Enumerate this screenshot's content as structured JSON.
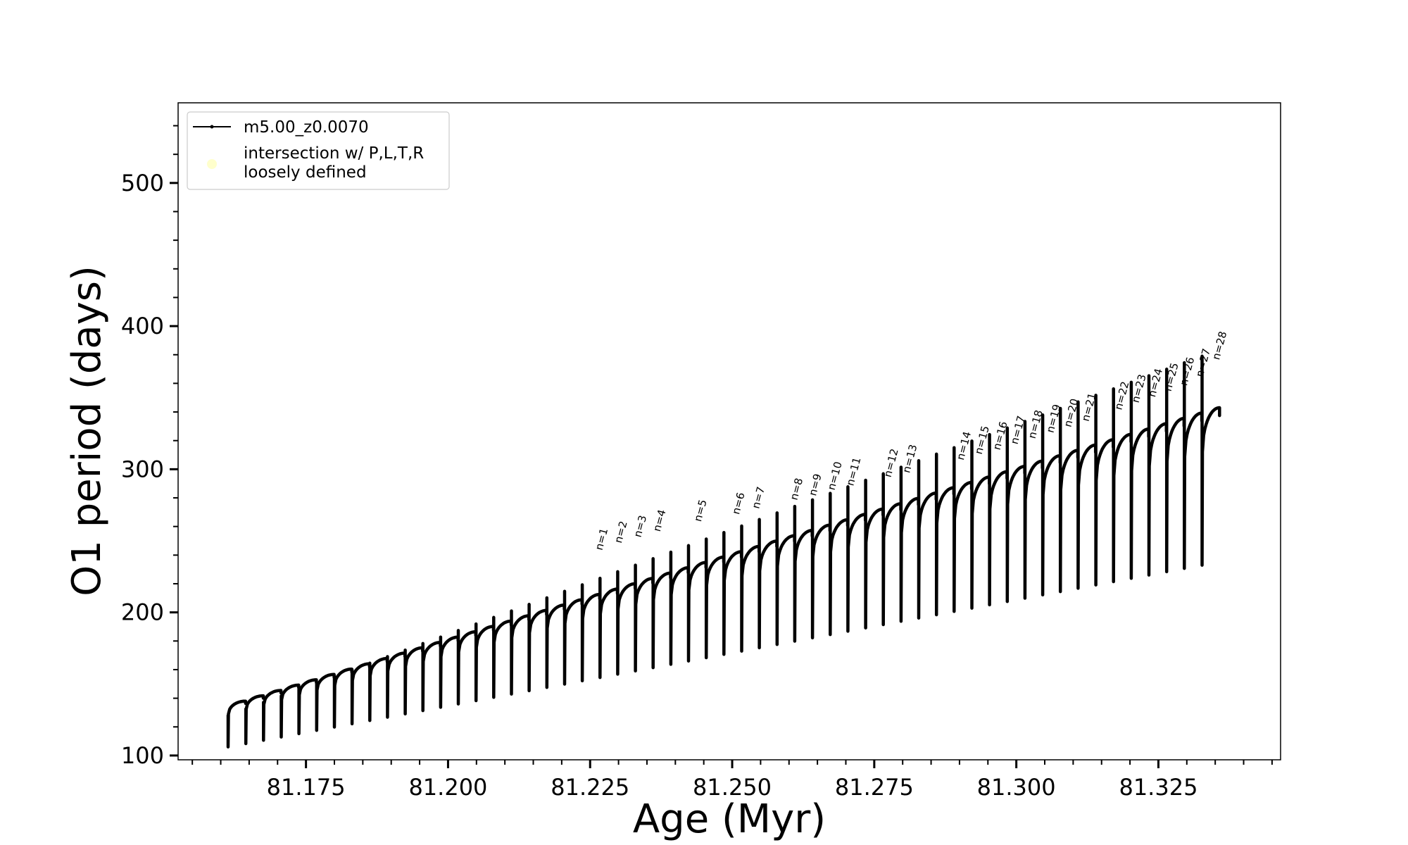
{
  "chart_data": {
    "type": "line",
    "xlabel": "Age (Myr)",
    "ylabel": "O1 period (days)",
    "xlim": [
      81.1525,
      81.3465
    ],
    "ylim": [
      97,
      556
    ],
    "x_ticks": [
      "81.175",
      "81.200",
      "81.225",
      "81.250",
      "81.275",
      "81.300",
      "81.325"
    ],
    "y_ticks": [
      "100",
      "200",
      "300",
      "400",
      "500"
    ],
    "grid": false,
    "legend_placement": "top-left",
    "legend": [
      {
        "label": "m5.00_z0.0070",
        "color": "#000000"
      },
      {
        "label": "intersection w/ P,L,T,R loosely defined",
        "lines": [
          "intersection w/ P,L,T,R",
          "loosely defined"
        ],
        "color": "#ffffcc"
      }
    ],
    "series": [
      {
        "name": "m5.00_z0.0070",
        "color": "#000000",
        "x_start": 81.1613,
        "x_end": 81.3358,
        "cycle_count": 56,
        "cycle_max_start": 138,
        "cycle_max_end": 343,
        "cycle_min_start": 106,
        "cycle_min_end": 233,
        "spike_max_start": 128,
        "spike_max_end": 379
      }
    ],
    "annotations": [
      {
        "text": "n=1",
        "x": 81.2271,
        "y": 243
      },
      {
        "text": "n=2",
        "x": 81.2305,
        "y": 248
      },
      {
        "text": "n=3",
        "x": 81.2339,
        "y": 252
      },
      {
        "text": "n=4",
        "x": 81.2373,
        "y": 256
      },
      {
        "text": "n=5",
        "x": 81.2445,
        "y": 263
      },
      {
        "text": "n=6",
        "x": 81.2512,
        "y": 268
      },
      {
        "text": "n=7",
        "x": 81.2547,
        "y": 272
      },
      {
        "text": "n=8",
        "x": 81.2614,
        "y": 278
      },
      {
        "text": "n=9",
        "x": 81.2647,
        "y": 281
      },
      {
        "text": "n=10",
        "x": 81.268,
        "y": 285
      },
      {
        "text": "n=11",
        "x": 81.2713,
        "y": 288
      },
      {
        "text": "n=12",
        "x": 81.2779,
        "y": 294
      },
      {
        "text": "n=13",
        "x": 81.2812,
        "y": 297
      },
      {
        "text": "n=14",
        "x": 81.2907,
        "y": 306
      },
      {
        "text": "n=15",
        "x": 81.2939,
        "y": 310
      },
      {
        "text": "n=16",
        "x": 81.2971,
        "y": 313
      },
      {
        "text": "n=17",
        "x": 81.3002,
        "y": 317
      },
      {
        "text": "n=18",
        "x": 81.3033,
        "y": 321
      },
      {
        "text": "n=19",
        "x": 81.3065,
        "y": 325
      },
      {
        "text": "n=20",
        "x": 81.3096,
        "y": 329
      },
      {
        "text": "n=21",
        "x": 81.3127,
        "y": 333
      },
      {
        "text": "n=22",
        "x": 81.3185,
        "y": 341
      },
      {
        "text": "n=23",
        "x": 81.3215,
        "y": 346
      },
      {
        "text": "n=24",
        "x": 81.3244,
        "y": 350
      },
      {
        "text": "n=25",
        "x": 81.3272,
        "y": 354
      },
      {
        "text": "n=26",
        "x": 81.33,
        "y": 358
      },
      {
        "text": "n=27",
        "x": 81.3328,
        "y": 364
      },
      {
        "text": "n=28",
        "x": 81.3357,
        "y": 376
      }
    ]
  }
}
